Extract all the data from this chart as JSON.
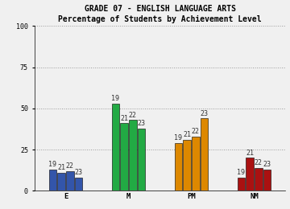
{
  "title_line1": "GRADE 07 - ENGLISH LANGUAGE ARTS",
  "title_line2": "Percentage of Students by Achievement Level",
  "categories": [
    "E",
    "M",
    "PM",
    "NM"
  ],
  "year_labels": [
    "19",
    "21",
    "22",
    "23"
  ],
  "values": {
    "E": [
      19,
      21,
      22,
      23
    ],
    "M": [
      19,
      21,
      22,
      23
    ],
    "PM": [
      19,
      21,
      22,
      23
    ],
    "NM": [
      19,
      21,
      22,
      23
    ]
  },
  "bar_heights": {
    "E": [
      13,
      11,
      12,
      8
    ],
    "M": [
      53,
      41,
      43,
      38
    ],
    "PM": [
      29,
      31,
      33,
      44
    ],
    "NM": [
      8,
      20,
      14,
      13
    ]
  },
  "colors": {
    "E": "#3355aa",
    "M": "#22aa44",
    "PM": "#dd8800",
    "NM": "#aa1111"
  },
  "ylim": [
    0,
    100
  ],
  "yticks": [
    0,
    25,
    50,
    75,
    100
  ],
  "background_color": "#f0f0f0",
  "grid_color": "#999999",
  "title_fontsize": 7,
  "tick_fontsize": 6,
  "bar_label_fontsize": 6,
  "cat_label_fontsize": 6.5
}
